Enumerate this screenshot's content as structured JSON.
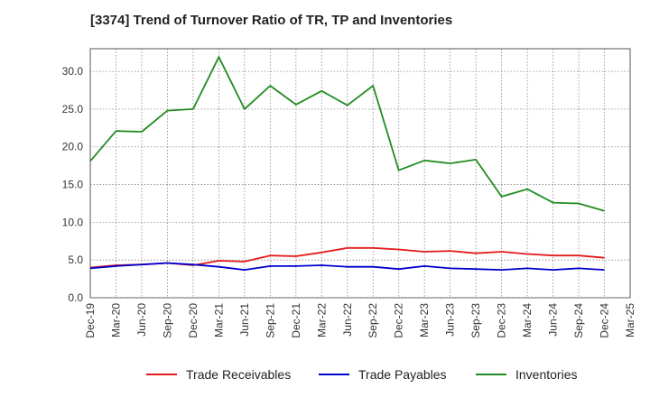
{
  "title": "[3374]  Trend of Turnover Ratio of TR, TP and Inventories",
  "chart_data": {
    "type": "line",
    "title": "[3374]  Trend of Turnover Ratio of TR, TP and Inventories",
    "xlabel": "",
    "ylabel": "",
    "ylim": [
      0,
      33
    ],
    "y_ticks": [
      "0.0",
      "5.0",
      "10.0",
      "15.0",
      "20.0",
      "25.0",
      "30.0"
    ],
    "x_ticks": [
      "Dec-19",
      "Mar-20",
      "Jun-20",
      "Sep-20",
      "Dec-20",
      "Mar-21",
      "Jun-21",
      "Sep-21",
      "Dec-21",
      "Mar-22",
      "Jun-22",
      "Sep-22",
      "Dec-22",
      "Mar-23",
      "Jun-23",
      "Sep-23",
      "Dec-23",
      "Mar-24",
      "Jun-24",
      "Sep-24",
      "Dec-24",
      "Mar-25"
    ],
    "x": [
      "Dec-19",
      "Mar-20",
      "Jun-20",
      "Sep-20",
      "Dec-20",
      "Mar-21",
      "Jun-21",
      "Sep-21",
      "Dec-21",
      "Mar-22",
      "Jun-22",
      "Sep-22",
      "Dec-22",
      "Mar-23",
      "Jun-23",
      "Sep-23",
      "Dec-23",
      "Mar-24",
      "Jun-24",
      "Sep-24",
      "Dec-24"
    ],
    "grid": true,
    "legend_position": "bottom",
    "series": [
      {
        "name": "Trade Receivables",
        "color": "#e31a1c",
        "values": [
          4.0,
          4.3,
          4.4,
          4.6,
          4.3,
          4.9,
          4.8,
          5.6,
          5.5,
          6.0,
          6.6,
          6.6,
          6.4,
          6.1,
          6.2,
          5.9,
          6.1,
          5.8,
          5.6,
          5.6,
          5.3
        ]
      },
      {
        "name": "Trade Payables",
        "color": "#0000cc",
        "values": [
          3.9,
          4.2,
          4.4,
          4.6,
          4.4,
          4.1,
          3.7,
          4.2,
          4.2,
          4.3,
          4.1,
          4.1,
          3.8,
          4.2,
          3.9,
          3.8,
          3.7,
          3.9,
          3.7,
          3.9,
          3.7
        ]
      },
      {
        "name": "Inventories",
        "color": "#228b22",
        "values": [
          18.1,
          22.1,
          22.0,
          24.8,
          25.0,
          31.9,
          25.0,
          28.1,
          25.6,
          27.4,
          25.5,
          28.1,
          16.9,
          18.2,
          17.8,
          18.3,
          13.4,
          14.4,
          12.6,
          12.5,
          11.5
        ]
      }
    ]
  }
}
